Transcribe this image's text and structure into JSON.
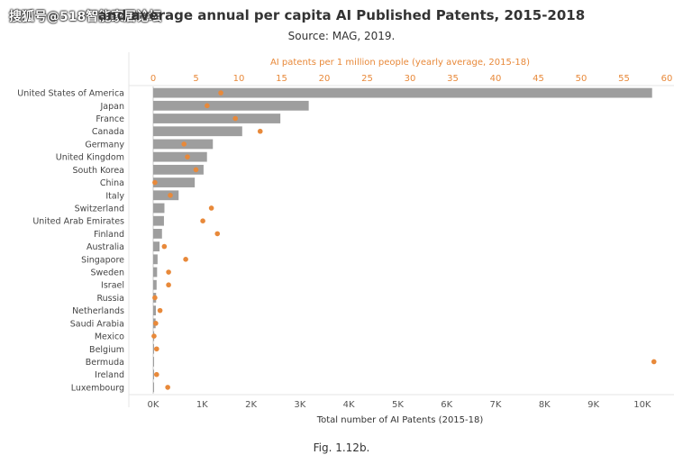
{
  "header": {
    "watermark": "搜狐号@518智能家居论坛",
    "title": "and average annual per capita AI Published Patents, 2015-2018",
    "subtitle": "Source: MAG, 2019.",
    "caption": "Fig. 1.12b."
  },
  "colors": {
    "bar": "#9e9e9e",
    "dot": "#e8893a",
    "grid": "#e5e5e5"
  },
  "chart_data": {
    "type": "bar",
    "orientation": "horizontal",
    "categories": [
      "United States of America",
      "Japan",
      "France",
      "Canada",
      "Germany",
      "United Kingdom",
      "South Korea",
      "China",
      "Italy",
      "Switzerland",
      "United Arab Emirates",
      "Finland",
      "Australia",
      "Singapore",
      "Sweden",
      "Israel",
      "Russia",
      "Netherlands",
      "Saudi Arabia",
      "Mexico",
      "Belgium",
      "Bermuda",
      "Ireland",
      "Luxembourg"
    ],
    "series": [
      {
        "name": "Total number of AI Patents (2015-18)",
        "axis": "bottom",
        "values": [
          10200,
          3180,
          2600,
          1820,
          1220,
          1100,
          1030,
          850,
          520,
          230,
          220,
          180,
          130,
          90,
          80,
          70,
          60,
          55,
          50,
          20,
          15,
          10,
          10,
          10
        ]
      },
      {
        "name": "AI patents per 1 million people (yearly average, 2015-18)",
        "axis": "top",
        "values": [
          7.9,
          6.3,
          9.6,
          12.5,
          3.6,
          4.0,
          5.0,
          0.2,
          2.0,
          6.8,
          5.8,
          7.5,
          1.3,
          3.8,
          1.8,
          1.8,
          0.2,
          0.8,
          0.3,
          0.1,
          0.4,
          58.5,
          0.4,
          1.7
        ]
      }
    ],
    "xlabel_bottom": "Total number of AI Patents (2015-18)",
    "xlabel_top": "AI patents per 1 million people (yearly average, 2015-18)",
    "xlim_bottom": [
      0,
      10500
    ],
    "xlim_top": [
      0,
      60
    ],
    "ticks_bottom": [
      "0K",
      "1K",
      "2K",
      "3K",
      "4K",
      "5K",
      "6K",
      "7K",
      "8K",
      "9K",
      "10K"
    ],
    "ticks_top": [
      "0",
      "5",
      "10",
      "15",
      "20",
      "25",
      "30",
      "35",
      "40",
      "45",
      "50",
      "55",
      "60"
    ],
    "grid": true
  }
}
